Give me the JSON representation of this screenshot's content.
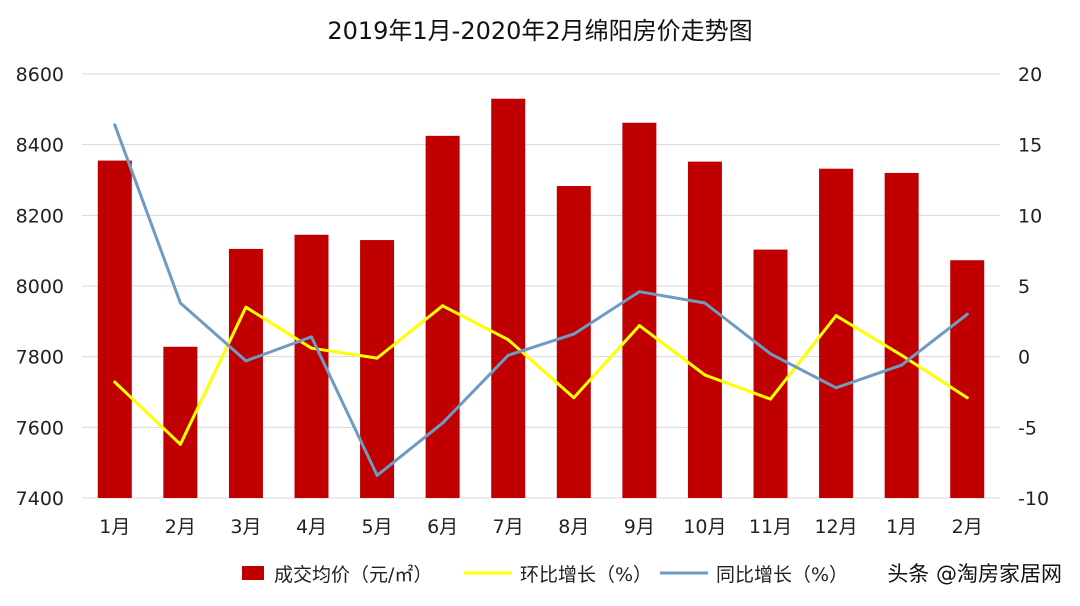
{
  "chart_data": {
    "type": "bar",
    "title": "2019年1月-2020年2月绵阳房价走势图",
    "categories": [
      "1月",
      "2月",
      "3月",
      "4月",
      "5月",
      "6月",
      "7月",
      "8月",
      "9月",
      "10月",
      "11月",
      "12月",
      "1月",
      "2月"
    ],
    "series": [
      {
        "name": "成交均价（元/㎡）",
        "type": "bar",
        "axis": "left",
        "color": "#c00000",
        "values": [
          8355,
          7828,
          8105,
          8145,
          8130,
          8425,
          8530,
          8283,
          8462,
          8352,
          8103,
          8332,
          8320,
          8073
        ]
      },
      {
        "name": "环比增长（%）",
        "type": "line",
        "axis": "right",
        "color": "#ffff00",
        "values": [
          -1.8,
          -6.2,
          3.5,
          0.6,
          -0.1,
          3.6,
          1.2,
          -2.9,
          2.2,
          -1.3,
          -3.0,
          2.9,
          0.1,
          -2.9
        ]
      },
      {
        "name": "同比增长（%）",
        "type": "line",
        "axis": "right",
        "color": "#6f9ac2",
        "values": [
          16.4,
          3.8,
          -0.3,
          1.4,
          -8.4,
          -4.7,
          0.1,
          1.6,
          4.6,
          3.8,
          0.2,
          -2.2,
          -0.6,
          3.0
        ]
      }
    ],
    "y_left": {
      "min": 7400,
      "max": 8600,
      "ticks": [
        "7400",
        "7600",
        "7800",
        "8000",
        "8200",
        "8400",
        "8600"
      ]
    },
    "y_right": {
      "min": -10,
      "max": 20,
      "ticks": [
        "-10",
        "-5",
        "0",
        "5",
        "10",
        "15",
        "20"
      ]
    },
    "grid": true,
    "legend": "bottom"
  },
  "watermark": "头条 @淘房家居网"
}
